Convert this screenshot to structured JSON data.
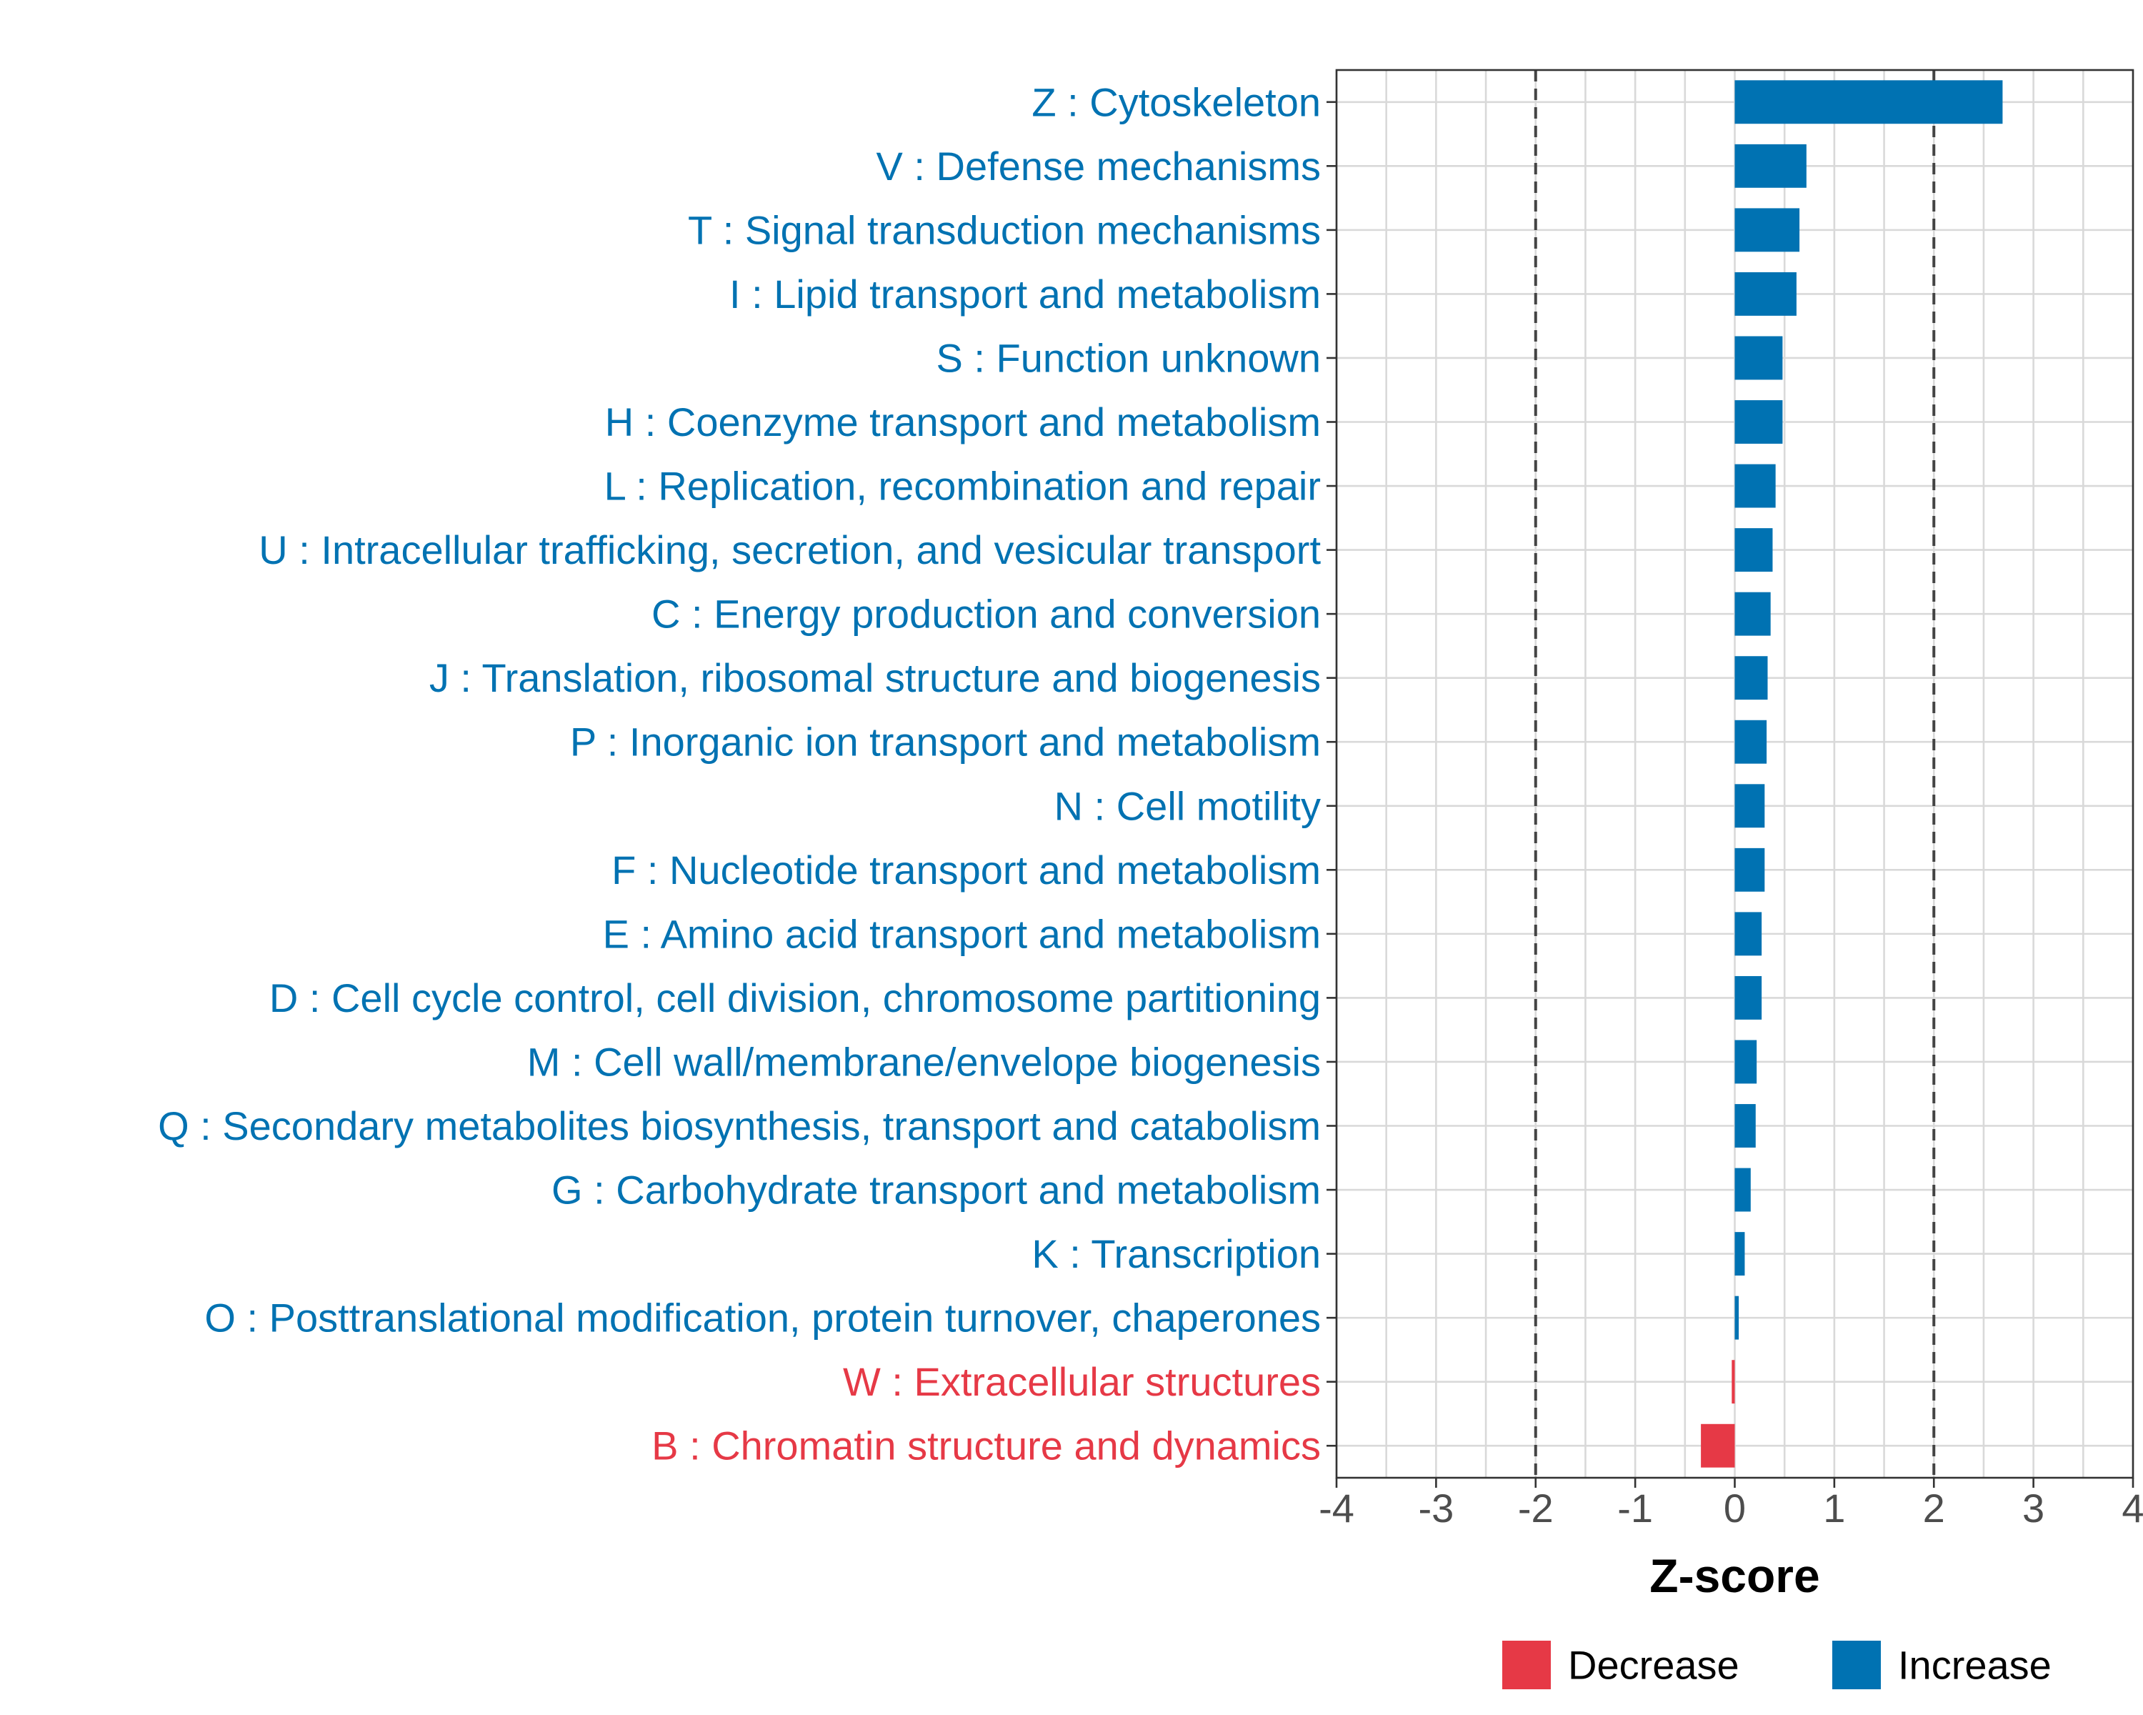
{
  "chart_data": {
    "type": "bar",
    "orientation": "horizontal",
    "title": "",
    "xlabel": "Z-score",
    "ylabel": "",
    "xlim": [
      -4,
      4
    ],
    "x_ticks": [
      -4,
      -3,
      -2,
      -1,
      0,
      1,
      2,
      3,
      4
    ],
    "x_tick_labels": [
      "-4",
      "-3",
      "-2",
      "-1",
      "0",
      "1",
      "2",
      "3",
      "4"
    ],
    "grid": true,
    "reference_lines": [
      -2,
      2
    ],
    "colors": {
      "Increase": "#0072b2",
      "Decrease": "#e63946"
    },
    "legend": {
      "position": "bottom",
      "entries": [
        {
          "label": "Decrease",
          "color": "#e63946"
        },
        {
          "label": "Increase",
          "color": "#0072b2"
        }
      ]
    },
    "categories": [
      "Z : Cytoskeleton",
      "V : Defense mechanisms",
      "T : Signal transduction mechanisms",
      "I : Lipid transport and metabolism",
      "S : Function unknown",
      "H : Coenzyme transport and metabolism",
      "L : Replication, recombination and repair",
      "U : Intracellular trafficking, secretion, and vesicular transport",
      "C : Energy production and conversion",
      "J : Translation, ribosomal structure and biogenesis",
      "P : Inorganic ion transport and metabolism",
      "N : Cell motility",
      "F : Nucleotide transport and metabolism",
      "E : Amino acid transport and metabolism",
      "D : Cell cycle control, cell division, chromosome partitioning",
      "M : Cell wall/membrane/envelope biogenesis",
      "Q : Secondary metabolites biosynthesis, transport and catabolism",
      "G : Carbohydrate transport and metabolism",
      "K : Transcription",
      "O : Posttranslational modification, protein turnover, chaperones",
      "W : Extracellular structures",
      "B : Chromatin structure and dynamics"
    ],
    "values": [
      2.69,
      0.72,
      0.65,
      0.62,
      0.48,
      0.48,
      0.41,
      0.38,
      0.36,
      0.33,
      0.32,
      0.3,
      0.3,
      0.27,
      0.27,
      0.22,
      0.21,
      0.16,
      0.1,
      0.04,
      -0.03,
      -0.34
    ],
    "direction": [
      "Increase",
      "Increase",
      "Increase",
      "Increase",
      "Increase",
      "Increase",
      "Increase",
      "Increase",
      "Increase",
      "Increase",
      "Increase",
      "Increase",
      "Increase",
      "Increase",
      "Increase",
      "Increase",
      "Increase",
      "Increase",
      "Increase",
      "Increase",
      "Decrease",
      "Decrease"
    ]
  }
}
